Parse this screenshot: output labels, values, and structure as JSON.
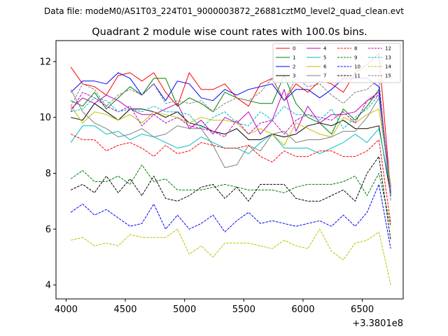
{
  "suptitle": "Data file: modeM0/AS1T03_224T01_9000003872_26881cztM0_level2_quad_clean.evt",
  "chart_data": {
    "type": "line",
    "title": "Quadrant 2 module wise count rates with 100.0s bins.",
    "xlabel": "",
    "ylabel": "",
    "x_offset_label": "+3.3801e8",
    "xlim": [
      3915,
      6845
    ],
    "ylim": [
      3.5,
      12.75
    ],
    "xticks": [
      4000,
      4500,
      5000,
      5500,
      6000,
      6500
    ],
    "yticks": [
      4,
      6,
      8,
      10,
      12
    ],
    "grid": false,
    "legend_position": "top-right",
    "legend_columns": 4,
    "x": [
      4040,
      4140,
      4240,
      4340,
      4440,
      4540,
      4640,
      4740,
      4840,
      4940,
      5040,
      5140,
      5240,
      5340,
      5440,
      5540,
      5640,
      5740,
      5840,
      5940,
      6040,
      6140,
      6240,
      6340,
      6440,
      6540,
      6640,
      6740
    ],
    "series": [
      {
        "name": "0",
        "color": "#ff0000",
        "dash": "solid",
        "values": [
          11.8,
          11.2,
          11.1,
          10.8,
          11.5,
          11.6,
          11.3,
          11.6,
          10.9,
          10.4,
          11.6,
          11.0,
          11.0,
          11.2,
          10.7,
          10.4,
          11.2,
          11.4,
          10.6,
          11.2,
          10.9,
          11.3,
          11.2,
          10.9,
          11.6,
          11.9,
          12.3,
          7.3
        ]
      },
      {
        "name": "1",
        "color": "#008000",
        "dash": "solid",
        "values": [
          10.6,
          10.4,
          10.9,
          10.3,
          10.7,
          11.1,
          10.8,
          11.4,
          11.4,
          10.4,
          10.7,
          10.5,
          10.2,
          10.9,
          10.7,
          10.6,
          10.5,
          10.5,
          11.5,
          10.5,
          10.0,
          9.8,
          9.4,
          10.3,
          9.9,
          10.4,
          11.0,
          7.2
        ]
      },
      {
        "name": "2",
        "color": "#0000ff",
        "dash": "solid",
        "values": [
          10.9,
          11.3,
          11.3,
          11.2,
          11.6,
          11.4,
          10.8,
          11.2,
          10.6,
          11.3,
          11.2,
          10.7,
          10.6,
          11.0,
          10.8,
          11.0,
          11.1,
          11.2,
          10.6,
          11.0,
          11.0,
          10.7,
          11.0,
          11.4,
          11.4,
          11.4,
          11.1,
          7.3
        ]
      },
      {
        "name": "3",
        "color": "#000000",
        "dash": "solid",
        "values": [
          10.0,
          9.9,
          10.5,
          10.2,
          9.9,
          10.3,
          10.3,
          10.2,
          10.0,
          10.2,
          9.8,
          9.7,
          9.5,
          9.4,
          9.6,
          9.2,
          9.2,
          9.4,
          9.3,
          9.4,
          9.7,
          9.8,
          9.7,
          9.9,
          9.6,
          9.6,
          9.7,
          7.2
        ]
      },
      {
        "name": "4",
        "color": "#bf00bf",
        "dash": "solid",
        "values": [
          10.3,
          10.7,
          10.5,
          10.8,
          10.6,
          10.3,
          10.1,
          10.1,
          10.3,
          10.5,
          9.6,
          9.9,
          9.4,
          10.0,
          9.8,
          10.2,
          9.4,
          9.9,
          11.0,
          9.5,
          10.4,
          9.8,
          10.1,
          10.1,
          10.2,
          10.6,
          10.9,
          7.5
        ]
      },
      {
        "name": "5",
        "color": "#00bfbf",
        "dash": "solid",
        "values": [
          9.1,
          9.7,
          9.7,
          9.4,
          9.5,
          9.2,
          9.4,
          9.3,
          9.1,
          8.9,
          9.0,
          9.3,
          9.1,
          8.9,
          8.9,
          8.7,
          9.1,
          9.4,
          8.9,
          8.9,
          8.9,
          8.7,
          8.9,
          9.1,
          9.4,
          9.1,
          9.6,
          7.4
        ]
      },
      {
        "name": "6",
        "color": "#bfbf00",
        "dash": "solid",
        "values": [
          10.4,
          9.8,
          10.2,
          10.1,
          9.9,
          10.1,
          9.8,
          10.2,
          10.1,
          10.0,
          9.8,
          10.0,
          9.9,
          9.9,
          9.8,
          9.4,
          9.6,
          9.4,
          9.0,
          9.8,
          9.6,
          9.4,
          9.3,
          10.0,
          9.8,
          10.1,
          10.3,
          7.6
        ]
      },
      {
        "name": "7",
        "color": "#808080",
        "dash": "solid",
        "values": [
          11.0,
          10.2,
          9.8,
          9.6,
          9.3,
          9.4,
          9.6,
          9.3,
          9.4,
          9.7,
          9.6,
          9.6,
          9.0,
          8.2,
          8.3,
          9.0,
          8.8,
          9.4,
          9.5,
          9.1,
          9.2,
          9.2,
          9.3,
          9.5,
          9.5,
          10.0,
          10.7,
          7.4
        ]
      },
      {
        "name": "8",
        "color": "#ff0000",
        "dash": "dashed",
        "values": [
          9.4,
          9.2,
          9.2,
          8.8,
          9.0,
          9.1,
          8.9,
          8.6,
          9.0,
          8.7,
          8.8,
          9.1,
          9.0,
          8.9,
          8.9,
          9.0,
          8.6,
          8.4,
          8.8,
          8.6,
          8.6,
          8.8,
          8.8,
          8.6,
          8.6,
          8.8,
          9.2,
          6.2
        ]
      },
      {
        "name": "9",
        "color": "#008000",
        "dash": "dashed",
        "values": [
          7.8,
          8.1,
          7.7,
          7.7,
          7.9,
          7.6,
          8.3,
          7.7,
          7.8,
          7.4,
          7.4,
          7.4,
          7.5,
          7.6,
          7.5,
          7.4,
          7.4,
          7.4,
          7.3,
          7.5,
          7.6,
          7.6,
          7.6,
          7.7,
          7.9,
          7.2,
          8.0,
          6.1
        ]
      },
      {
        "name": "10",
        "color": "#0000ff",
        "dash": "dashed",
        "values": [
          6.6,
          6.9,
          6.5,
          6.7,
          6.4,
          6.1,
          6.2,
          6.9,
          6.0,
          6.5,
          6.0,
          6.2,
          6.5,
          5.9,
          6.3,
          6.6,
          6.2,
          6.3,
          6.2,
          6.1,
          6.2,
          6.3,
          6.1,
          6.5,
          6.1,
          6.6,
          7.6,
          5.3
        ]
      },
      {
        "name": "11",
        "color": "#000000",
        "dash": "dashed",
        "values": [
          7.4,
          7.6,
          7.3,
          7.9,
          7.3,
          7.8,
          7.2,
          7.9,
          7.1,
          7.0,
          7.2,
          7.5,
          7.6,
          7.1,
          7.5,
          7.0,
          7.6,
          7.6,
          7.6,
          7.1,
          7.0,
          7.0,
          7.2,
          7.4,
          7.0,
          8.0,
          8.6,
          5.6
        ]
      },
      {
        "name": "12",
        "color": "#bf00bf",
        "dash": "dashed",
        "values": [
          10.2,
          10.9,
          10.7,
          10.4,
          10.2,
          10.4,
          9.7,
          10.1,
          9.8,
          10.0,
          9.7,
          9.6,
          9.5,
          9.3,
          9.9,
          9.4,
          9.8,
          9.9,
          9.4,
          9.9,
          10.1,
          10.0,
          9.9,
          10.2,
          9.8,
          10.6,
          10.8,
          7.2
        ]
      },
      {
        "name": "13",
        "color": "#00bfbf",
        "dash": "dashed",
        "values": [
          10.2,
          10.3,
          10.7,
          10.6,
          10.2,
          10.3,
          10.2,
          10.4,
          10.2,
          10.2,
          10.1,
          9.6,
          10.0,
          10.2,
          9.8,
          9.7,
          10.2,
          9.9,
          10.4,
          10.1,
          10.1,
          9.9,
          10.3,
          9.6,
          10.0,
          10.3,
          10.8,
          7.1
        ]
      },
      {
        "name": "14",
        "color": "#bfbf00",
        "dash": "dashed",
        "values": [
          5.6,
          5.7,
          5.4,
          5.5,
          5.4,
          5.8,
          5.7,
          5.7,
          5.7,
          6.0,
          5.1,
          5.4,
          5.0,
          5.5,
          5.5,
          5.5,
          5.4,
          5.3,
          5.6,
          5.4,
          5.3,
          6.0,
          5.2,
          4.9,
          5.5,
          5.6,
          5.9,
          4.0
        ]
      },
      {
        "name": "15",
        "color": "#808080",
        "dash": "dashed",
        "values": [
          10.4,
          11.2,
          11.0,
          10.4,
          10.8,
          11.0,
          10.8,
          11.2,
          10.5,
          10.6,
          10.5,
          10.6,
          10.2,
          10.5,
          10.7,
          10.6,
          10.9,
          11.4,
          10.6,
          11.4,
          11.1,
          11.2,
          10.8,
          10.5,
          10.9,
          11.0,
          11.4,
          7.0
        ]
      }
    ]
  }
}
